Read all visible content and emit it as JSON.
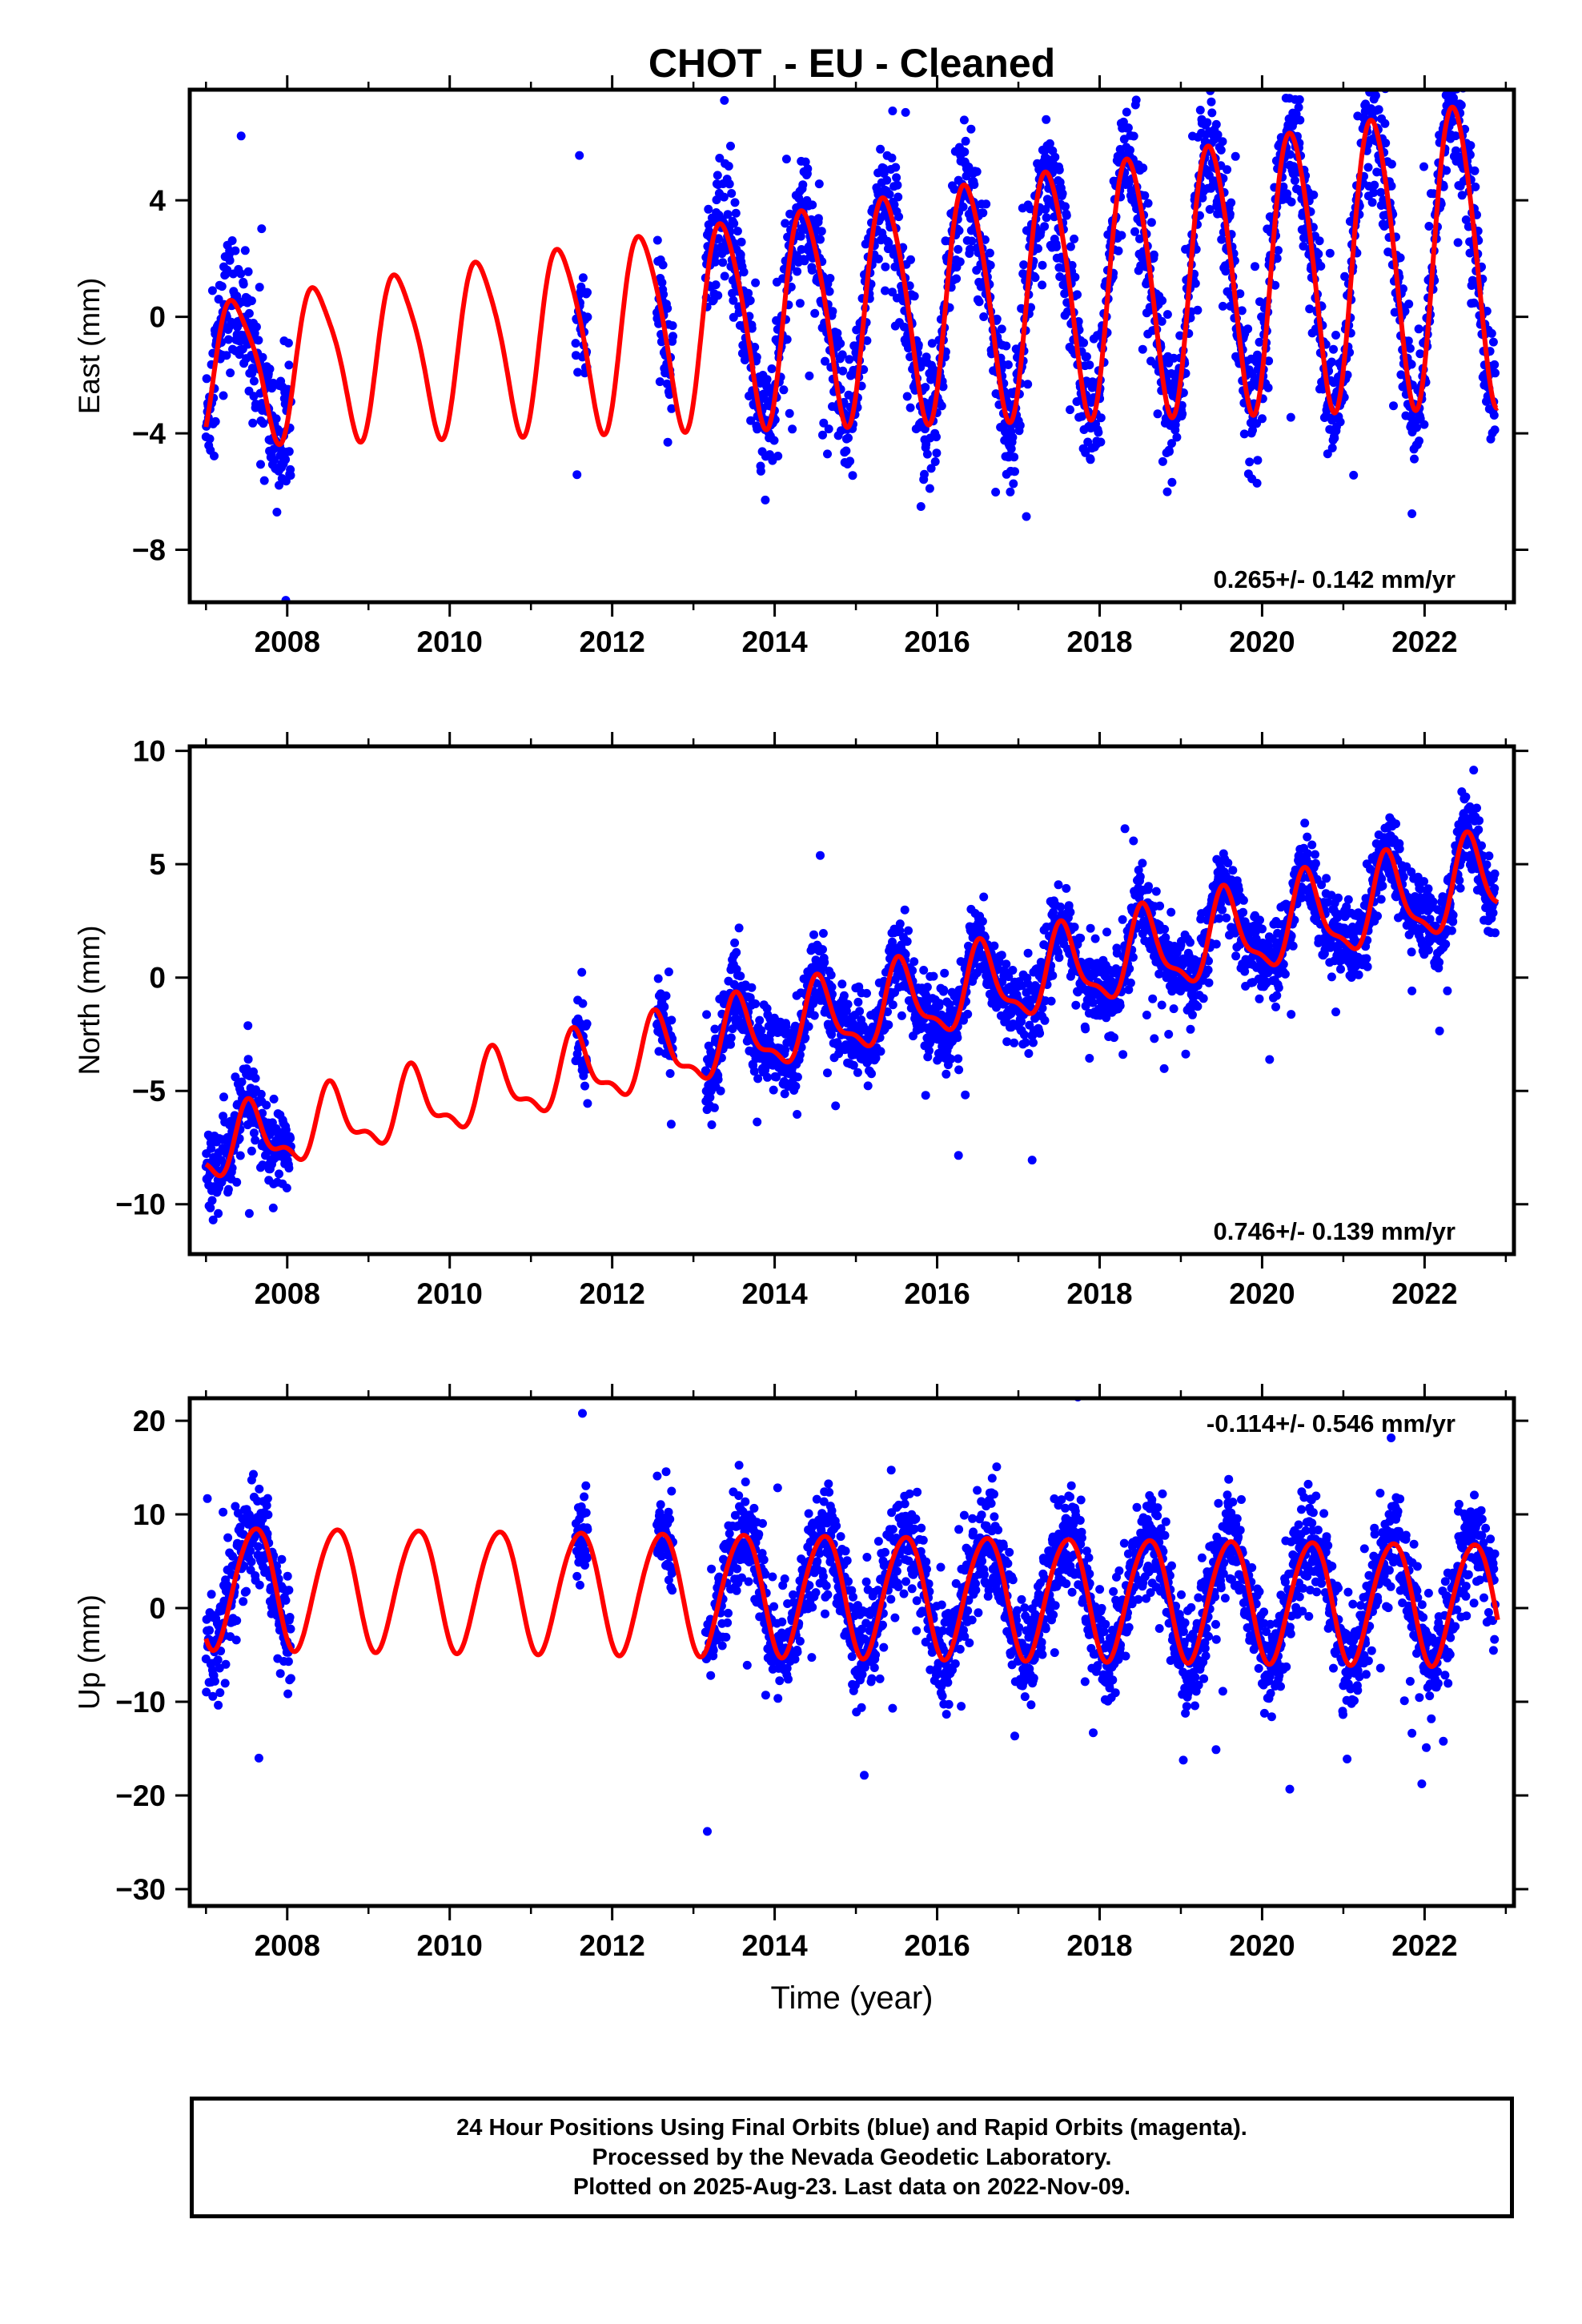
{
  "title": "CHOT  - EU - Cleaned",
  "chart_data": [
    {
      "type": "scatter",
      "ylabel": "East (mm)",
      "xlabel": "",
      "xlim": [
        2006.8,
        2023.1
      ],
      "ylim": [
        -9.8,
        7.8
      ],
      "yticks": [
        -8,
        -4,
        0,
        4
      ],
      "ytick_labels": [
        "−8",
        "−4",
        "0",
        "4"
      ],
      "xticks": [
        2008,
        2010,
        2012,
        2014,
        2016,
        2018,
        2020,
        2022
      ],
      "rate_label": "0.265+/- 0.142 mm/yr",
      "rate_pos": "bottom-right",
      "model": {
        "trend": 0.265,
        "offset": -1.8,
        "amp1": 2.3,
        "phase1": 2007.37,
        "amp2": 0.5,
        "phase2": 2007.2,
        "amp_growth": 0.08
      },
      "data_segments": [
        [
          2007.0,
          2008.05
        ],
        [
          2011.55,
          2011.7
        ],
        [
          2012.55,
          2012.75
        ],
        [
          2013.15,
          2022.87
        ]
      ],
      "scatter": 2.0,
      "series": [
        {
          "name": "Final Orbits",
          "mark": "dots",
          "color": "#0000ff"
        },
        {
          "name": "Model",
          "mark": "line",
          "color": "#ff0000"
        }
      ]
    },
    {
      "type": "scatter",
      "ylabel": "North (mm)",
      "xlabel": "",
      "xlim": [
        2006.8,
        2023.1
      ],
      "ylim": [
        -12.2,
        10.2
      ],
      "yticks": [
        -10,
        -5,
        0,
        5,
        10
      ],
      "ytick_labels": [
        "−10",
        "−5",
        "0",
        "5",
        "10"
      ],
      "xticks": [
        2008,
        2010,
        2012,
        2014,
        2016,
        2018,
        2020,
        2022
      ],
      "rate_label": "0.746+/- 0.139 mm/yr",
      "rate_pos": "bottom-right",
      "model": {
        "trend": 0.746,
        "offset": -7.6,
        "amp1": 1.3,
        "phase1": 2007.55,
        "amp2": 0.6,
        "phase2": 2007.5,
        "amp_growth": 0.03
      },
      "data_segments": [
        [
          2007.0,
          2008.05
        ],
        [
          2011.55,
          2011.7
        ],
        [
          2012.55,
          2012.75
        ],
        [
          2013.15,
          2022.87
        ]
      ],
      "scatter": 1.6,
      "series": [
        {
          "name": "Final Orbits",
          "mark": "dots",
          "color": "#0000ff"
        },
        {
          "name": "Model",
          "mark": "line",
          "color": "#ff0000"
        }
      ]
    },
    {
      "type": "scatter",
      "ylabel": "Up (mm)",
      "xlabel": "Time (year)",
      "xlim": [
        2006.8,
        2023.1
      ],
      "ylim": [
        -31.8,
        22.4
      ],
      "yticks": [
        -30,
        -20,
        -10,
        0,
        10,
        20
      ],
      "ytick_labels": [
        "−30",
        "−20",
        "−10",
        "0",
        "10",
        "20"
      ],
      "xticks": [
        2008,
        2010,
        2012,
        2014,
        2016,
        2018,
        2020,
        2022
      ],
      "rate_label": "-0.114+/- 0.546 mm/yr",
      "rate_pos": "top-right",
      "model": {
        "trend": -0.114,
        "offset": 2.4,
        "amp1": 6.5,
        "phase1": 2007.6,
        "amp2": 0.5,
        "phase2": 2007.3,
        "amp_growth": 0.0
      },
      "data_segments": [
        [
          2007.0,
          2008.05
        ],
        [
          2011.55,
          2011.7
        ],
        [
          2012.55,
          2012.75
        ],
        [
          2013.15,
          2022.87
        ]
      ],
      "scatter": 5.0,
      "series": [
        {
          "name": "Final Orbits",
          "mark": "dots",
          "color": "#0000ff"
        },
        {
          "name": "Model",
          "mark": "line",
          "color": "#ff0000"
        }
      ]
    }
  ],
  "footer": {
    "line1": "24 Hour Positions Using Final Orbits (blue) and Rapid Orbits (magenta).",
    "line2": "Processed by the Nevada Geodetic Laboratory.",
    "line3": "Plotted on 2025-Aug-23. Last data on 2022-Nov-09."
  }
}
